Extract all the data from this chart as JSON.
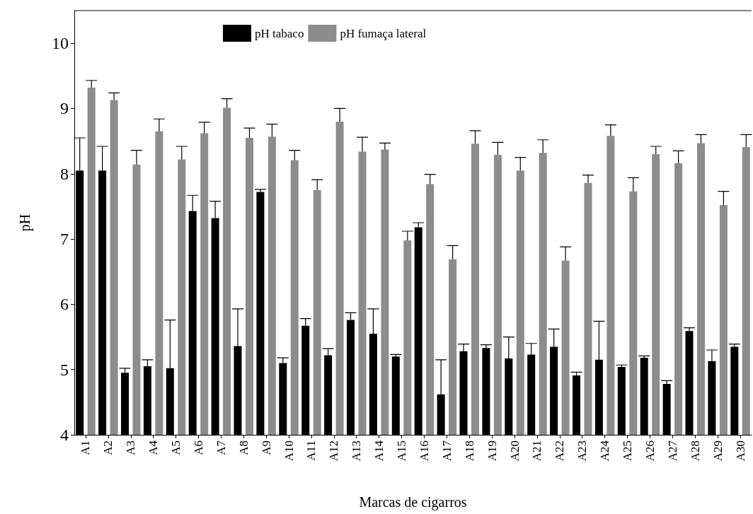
{
  "chart_data": {
    "type": "bar",
    "xlabel": "Marcas de cigarros",
    "ylabel": "pH",
    "categories": [
      "A1",
      "A2",
      "A3",
      "A4",
      "A5",
      "A6",
      "A7",
      "A8",
      "A9",
      "A10",
      "A11",
      "A12",
      "A13",
      "A14",
      "A15",
      "A16",
      "A17",
      "A18",
      "A19",
      "A20",
      "A21",
      "A22",
      "A23",
      "A24",
      "A25",
      "A26",
      "A27",
      "A28",
      "A29",
      "A30"
    ],
    "series": [
      {
        "name": "pH tabaco",
        "color": "#000000",
        "values": [
          8.05,
          8.05,
          4.95,
          5.05,
          5.02,
          7.43,
          7.32,
          5.36,
          7.72,
          5.1,
          5.67,
          5.22,
          5.76,
          5.55,
          5.2,
          7.18,
          4.62,
          5.28,
          5.33,
          5.17,
          5.23,
          5.35,
          4.91,
          5.15,
          5.04,
          5.18,
          4.78,
          5.59,
          5.13,
          5.35
        ],
        "errors": [
          [
            8.05,
            8.55
          ],
          [
            8.05,
            8.42
          ],
          [
            4.95,
            5.02
          ],
          [
            5.05,
            5.15
          ],
          [
            5.02,
            5.76
          ],
          [
            7.43,
            7.67
          ],
          [
            7.32,
            7.58
          ],
          [
            5.36,
            5.93
          ],
          [
            7.72,
            7.76
          ],
          [
            5.1,
            5.18
          ],
          [
            5.67,
            5.78
          ],
          [
            5.22,
            5.32
          ],
          [
            5.76,
            5.87
          ],
          [
            5.55,
            5.93
          ],
          [
            5.2,
            5.23
          ],
          [
            7.18,
            7.25
          ],
          [
            4.62,
            5.15
          ],
          [
            5.28,
            5.39
          ],
          [
            5.33,
            5.38
          ],
          [
            5.17,
            5.5
          ],
          [
            5.23,
            5.4
          ],
          [
            5.35,
            5.62
          ],
          [
            4.91,
            4.96
          ],
          [
            5.15,
            5.74
          ],
          [
            5.04,
            5.07
          ],
          [
            5.18,
            5.21
          ],
          [
            4.78,
            4.83
          ],
          [
            5.59,
            5.64
          ],
          [
            5.13,
            5.3
          ],
          [
            5.35,
            5.39
          ]
        ]
      },
      {
        "name": "pH fumaça lateral",
        "color": "#8c8c8c",
        "values": [
          9.32,
          9.13,
          8.14,
          8.65,
          8.22,
          8.62,
          9.01,
          8.55,
          8.57,
          8.21,
          7.75,
          8.8,
          8.34,
          8.37,
          6.98,
          7.84,
          6.69,
          8.46,
          8.29,
          8.05,
          8.32,
          6.67,
          7.86,
          8.58,
          7.73,
          8.3,
          8.16,
          8.47,
          7.52,
          8.41
        ],
        "errors": [
          [
            9.32,
            9.43
          ],
          [
            9.13,
            9.24
          ],
          [
            8.14,
            8.36
          ],
          [
            8.65,
            8.84
          ],
          [
            8.22,
            8.42
          ],
          [
            8.62,
            8.79
          ],
          [
            9.01,
            9.15
          ],
          [
            8.55,
            8.7
          ],
          [
            8.57,
            8.76
          ],
          [
            8.21,
            8.36
          ],
          [
            7.75,
            7.91
          ],
          [
            8.8,
            9.0
          ],
          [
            8.34,
            8.56
          ],
          [
            8.37,
            8.47
          ],
          [
            6.98,
            7.12
          ],
          [
            7.84,
            7.99
          ],
          [
            6.69,
            6.9
          ],
          [
            8.46,
            8.66
          ],
          [
            8.29,
            8.48
          ],
          [
            8.05,
            8.25
          ],
          [
            8.32,
            8.52
          ],
          [
            6.67,
            6.88
          ],
          [
            7.86,
            7.98
          ],
          [
            8.58,
            8.75
          ],
          [
            7.73,
            7.94
          ],
          [
            8.3,
            8.42
          ],
          [
            8.16,
            8.35
          ],
          [
            8.47,
            8.6
          ],
          [
            7.52,
            7.73
          ],
          [
            8.41,
            8.6
          ]
        ]
      }
    ],
    "ylim": [
      4,
      10.5
    ],
    "yticks": [
      4,
      5,
      6,
      7,
      8,
      9,
      10
    ],
    "grid": false,
    "legend": "top"
  }
}
